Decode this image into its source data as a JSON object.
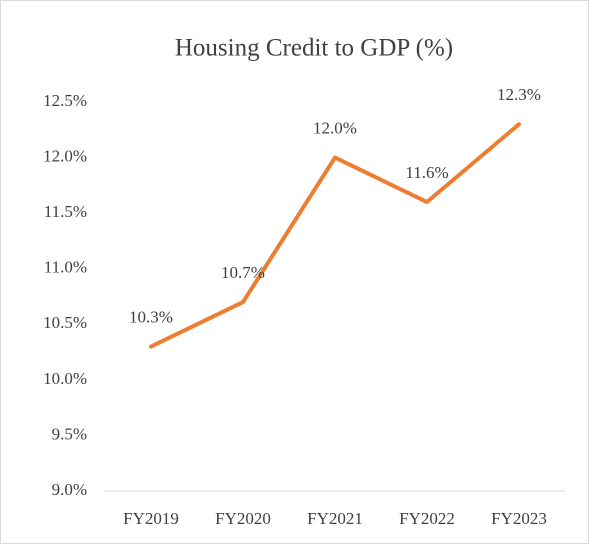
{
  "chart_data": {
    "type": "line",
    "title": "Housing Credit to GDP (%)",
    "categories": [
      "FY2019",
      "FY2020",
      "FY2021",
      "FY2022",
      "FY2023"
    ],
    "series": [
      {
        "name": "Housing Credit to GDP (%)",
        "color": "#ed7d31",
        "values": [
          10.3,
          10.7,
          12.0,
          11.6,
          12.3
        ],
        "value_labels": [
          "10.3%",
          "10.7%",
          "12.0%",
          "11.6%",
          "12.3%"
        ]
      }
    ],
    "ylim": [
      9.0,
      12.5
    ],
    "yticks": [
      {
        "value": 9.0,
        "label": "9.0%"
      },
      {
        "value": 9.5,
        "label": "9.5%"
      },
      {
        "value": 10.0,
        "label": "10.0%"
      },
      {
        "value": 10.5,
        "label": "10.5%"
      },
      {
        "value": 11.0,
        "label": "11.0%"
      },
      {
        "value": 11.5,
        "label": "11.5%"
      },
      {
        "value": 12.0,
        "label": "12.0%"
      },
      {
        "value": 12.5,
        "label": "12.5%"
      }
    ],
    "grid": false,
    "legend": false
  }
}
